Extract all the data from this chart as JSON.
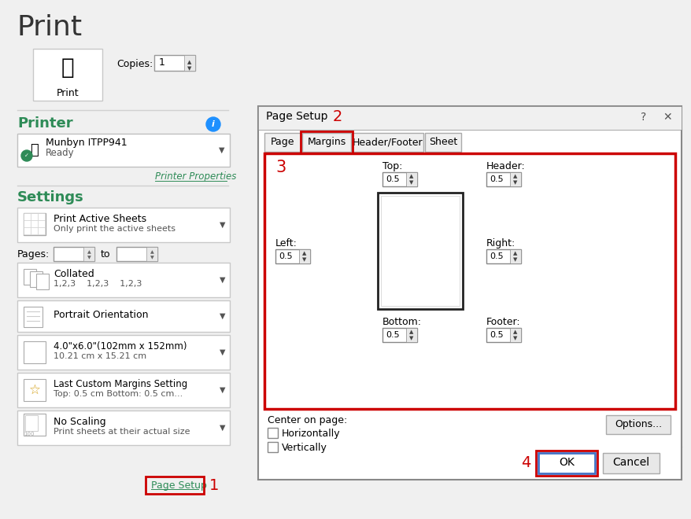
{
  "bg_color": "#f0f0f0",
  "title": "Print",
  "printer_label": "Printer",
  "printer_label_color": "#2e8b57",
  "settings_label": "Settings",
  "settings_label_color": "#2e8b57",
  "copies_label": "Copies:",
  "copies_value": "1",
  "printer_name": "Munbyn ITPP941",
  "printer_status": "Ready",
  "printer_properties": "Printer Properties",
  "print_active_sheets": "Print Active Sheets",
  "only_print_active": "Only print the active sheets",
  "pages_label": "Pages:",
  "pages_to": "to",
  "collated_top": "Collated",
  "collated_bot": "1,2,3    1,2,3    1,2,3",
  "portrait": "Portrait Orientation",
  "size_label": "4.0\"x6.0\"(102mm x 152mm)",
  "size_label2": "10.21 cm x 15.21 cm",
  "margins_setting": "Last Custom Margins Setting",
  "margins_setting2": "Top: 0.5 cm Bottom: 0.5 cm...",
  "no_scaling": "No Scaling",
  "no_scaling2": "Print sheets at their actual size",
  "page_setup_lnk": "Page Setup",
  "dialog_title": "Page Setup",
  "tab_page": "Page",
  "tab_margins": "Margins",
  "tab_hf": "Header/Footer",
  "tab_sheet": "Sheet",
  "top_label": "Top:",
  "header_label": "Header:",
  "left_label": "Left:",
  "right_label": "Right:",
  "bottom_label": "Bottom:",
  "footer_label": "Footer:",
  "spin_val": "0.5",
  "center_on_page": "Center on page:",
  "horizontally": "Horizontally",
  "vertically": "Vertically",
  "ok_btn": "OK",
  "cancel_btn": "Cancel",
  "options_btn": "Options...",
  "red": "#cc0000",
  "blue": "#4472c4",
  "green": "#2e8b57",
  "white": "#ffffff",
  "light_gray": "#f0f0f0",
  "mid_gray": "#e0e0e0",
  "border": "#aaaaaa",
  "dark_border": "#888888",
  "text": "#000000",
  "gray_text": "#555555"
}
